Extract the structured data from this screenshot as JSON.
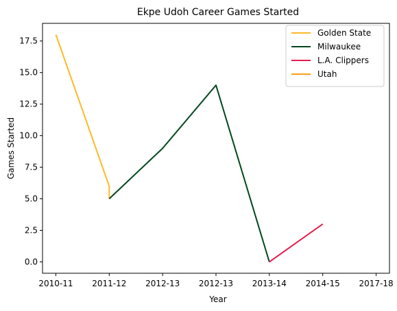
{
  "chart_data": {
    "type": "line",
    "title": "Ekpe Udoh Career Games Started",
    "xlabel": "Year",
    "ylabel": "Games Started",
    "x_tick_labels": [
      "2010-11",
      "2011-12",
      "2012-13",
      "2012-13",
      "2013-14",
      "2014-15",
      "2017-18"
    ],
    "xlim": [
      -0.25,
      6.25
    ],
    "ylim": [
      -0.9,
      18.9
    ],
    "y_ticks": [
      0.0,
      2.5,
      5.0,
      7.5,
      10.0,
      12.5,
      15.0,
      17.5
    ],
    "y_tick_labels": [
      "0.0",
      "2.5",
      "5.0",
      "7.5",
      "10.0",
      "12.5",
      "15.0",
      "17.5"
    ],
    "grid": false,
    "legend_position": "top-right",
    "series": [
      {
        "name": "Golden State",
        "color": "#FDB927",
        "x": [
          0,
          1,
          1
        ],
        "y": [
          18,
          6,
          5
        ]
      },
      {
        "name": "Milwaukee",
        "color": "#00471B",
        "x": [
          1,
          2,
          3,
          4
        ],
        "y": [
          5,
          9,
          14,
          0
        ]
      },
      {
        "name": "L.A. Clippers",
        "color": "#E41E4F",
        "x": [
          4,
          5
        ],
        "y": [
          0,
          3
        ]
      },
      {
        "name": "Utah",
        "color": "#F9A01B",
        "x": [],
        "y": []
      }
    ]
  }
}
